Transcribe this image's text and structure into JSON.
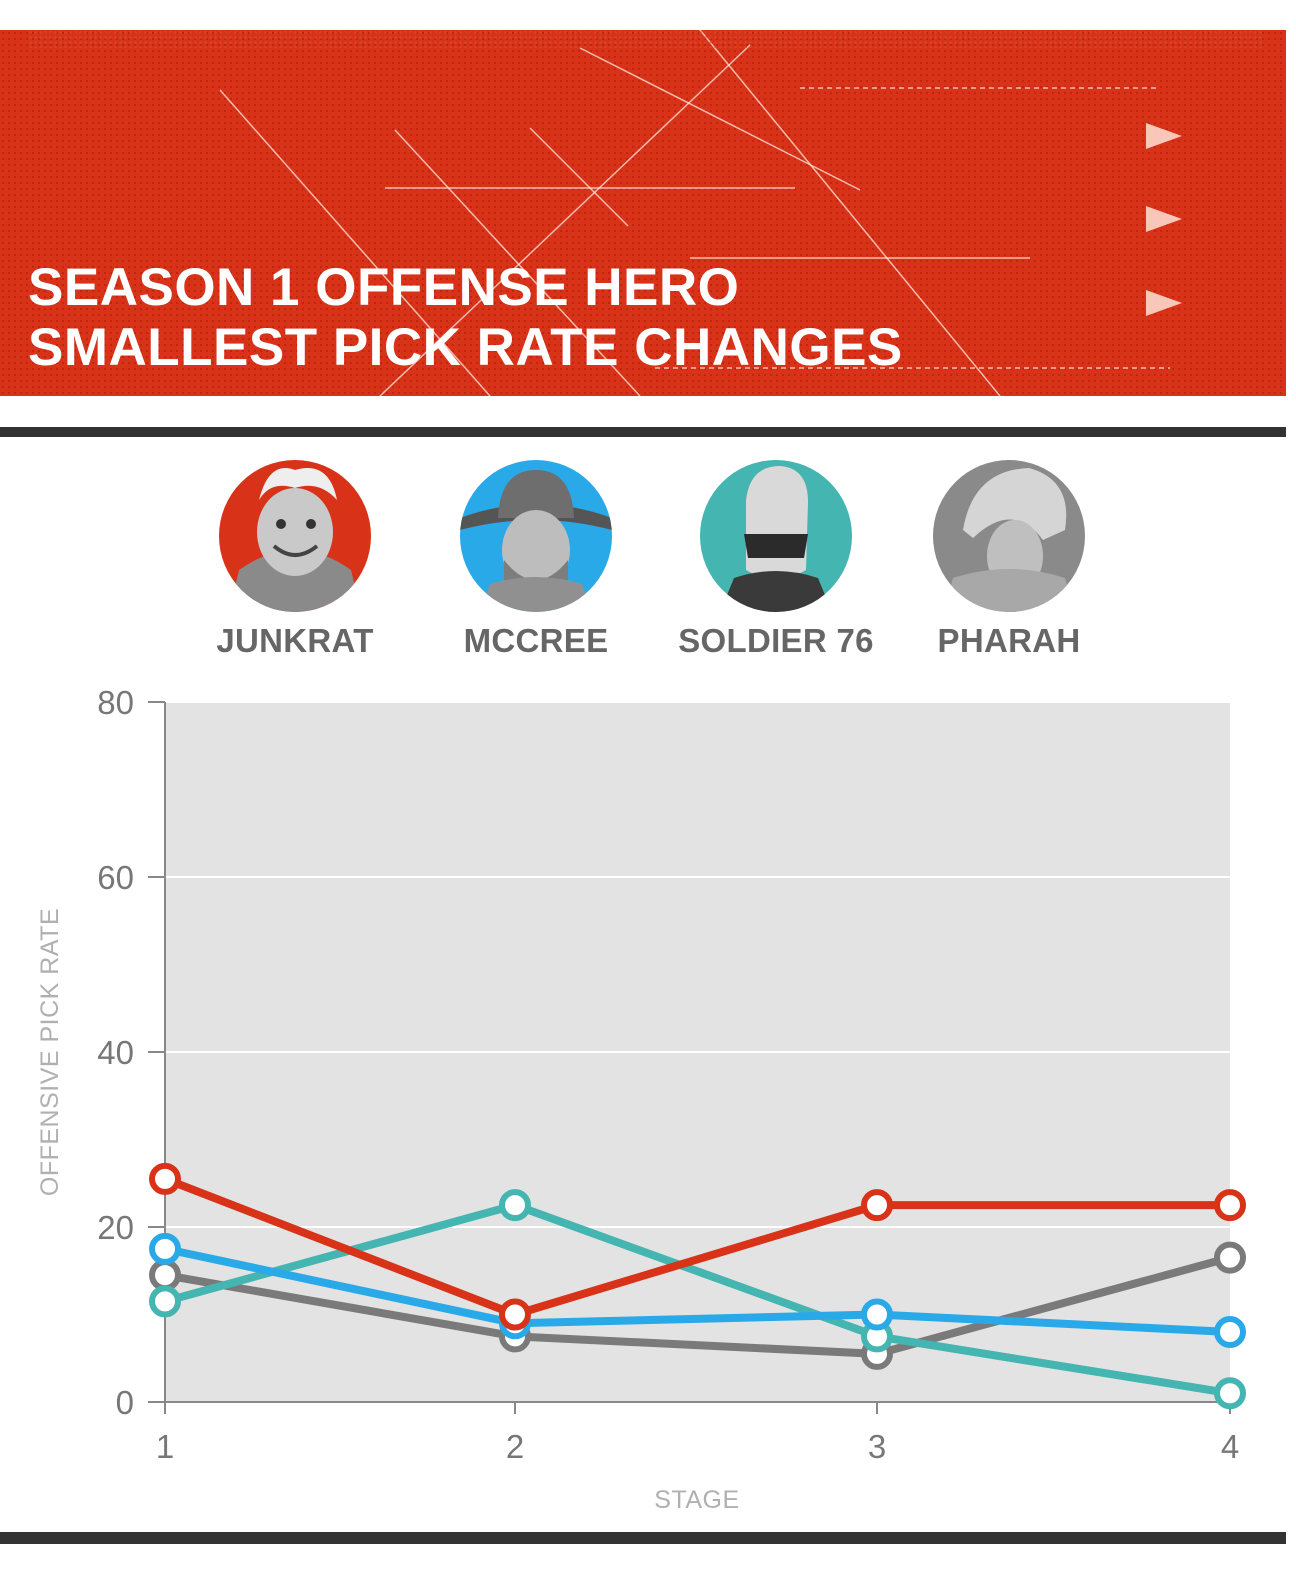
{
  "header": {
    "title_line1": "SEASON 1 OFFENSE HERO",
    "title_line2": "SMALLEST PICK RATE CHANGES"
  },
  "heroes": [
    {
      "name": "JUNKRAT",
      "color": "#d83218"
    },
    {
      "name": "MCCREE",
      "color": "#2aa9e8"
    },
    {
      "name": "SOLDIER 76",
      "color": "#44b5b0"
    },
    {
      "name": "PHARAH",
      "color": "#7a7a7a"
    }
  ],
  "chart_data": {
    "type": "line",
    "x": [
      1,
      2,
      3,
      4
    ],
    "xlabel": "STAGE",
    "ylabel": "OFFENSIVE PICK RATE",
    "ylim": [
      0,
      80
    ],
    "yticks": [
      0,
      20,
      40,
      60,
      80
    ],
    "xticks": [
      1,
      2,
      3,
      4
    ],
    "grid": true,
    "series": [
      {
        "name": "JUNKRAT",
        "color": "#d83218",
        "values": [
          25.5,
          10,
          22.5,
          22.5
        ]
      },
      {
        "name": "MCCREE",
        "color": "#2aa9e8",
        "values": [
          17.5,
          9,
          10,
          8
        ]
      },
      {
        "name": "SOLDIER 76",
        "color": "#44b5b0",
        "values": [
          11.5,
          22.5,
          7.5,
          1
        ]
      },
      {
        "name": "PHARAH",
        "color": "#7a7a7a",
        "values": [
          14.5,
          7.5,
          5.5,
          16.5
        ]
      }
    ]
  }
}
